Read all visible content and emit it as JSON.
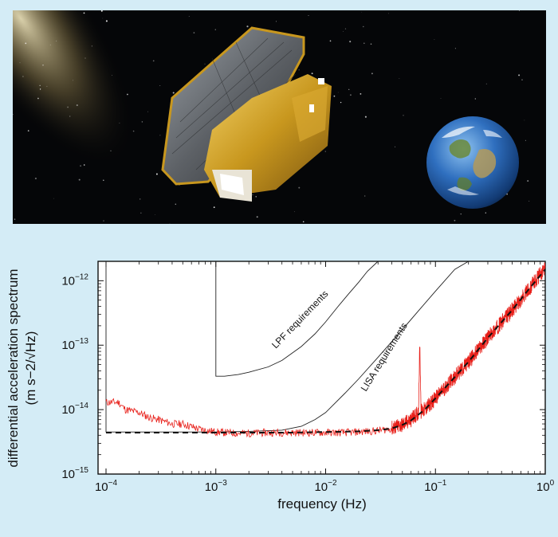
{
  "illustration": {
    "subject": "LISA Pathfinder spacecraft near Earth",
    "colors": {
      "space": "#050608",
      "gold": "#c8971e",
      "panel": "#5d6166",
      "earth_ocean": "#2f6fbf"
    }
  },
  "chart_data": {
    "type": "line",
    "xlabel": "frequency (Hz)",
    "ylabel": "differential acceleration spectrum",
    "ylabel_units": "(m s−2/√Hz)",
    "x_scale": "log",
    "y_scale": "log",
    "xlim": [
      0.0001,
      1
    ],
    "ylim": [
      1e-15,
      2e-12
    ],
    "x_ticks": [
      {
        "base": "10",
        "exp": "−4",
        "value": 0.0001
      },
      {
        "base": "10",
        "exp": "−3",
        "value": 0.001
      },
      {
        "base": "10",
        "exp": "−2",
        "value": 0.01
      },
      {
        "base": "10",
        "exp": "−1",
        "value": 0.1
      },
      {
        "base": "10",
        "exp": "0",
        "value": 1
      }
    ],
    "y_ticks": [
      {
        "base": "10",
        "exp": "−15",
        "value": 1e-15
      },
      {
        "base": "10",
        "exp": "−14",
        "value": 1e-14
      },
      {
        "base": "10",
        "exp": "−13",
        "value": 1e-13
      },
      {
        "base": "10",
        "exp": "−12",
        "value": 1e-12
      }
    ],
    "grid": false,
    "series": [
      {
        "name": "LPF requirements",
        "color": "#222222",
        "style": "solid-thin",
        "x": [
          0.001,
          0.001,
          0.0012,
          0.0016,
          0.002,
          0.003,
          0.004,
          0.006,
          0.008,
          0.01,
          0.013,
          0.016,
          0.02,
          0.024,
          0.03
        ],
        "y": [
          2e-12,
          3.3e-14,
          3.3e-14,
          3.5e-14,
          3.8e-14,
          4.6e-14,
          5.8e-14,
          9.5e-14,
          1.5e-13,
          2.3e-13,
          4e-13,
          6.1e-13,
          9.5e-13,
          1.4e-12,
          2e-12
        ]
      },
      {
        "name": "LISA requirements",
        "color": "#222222",
        "style": "solid-thin",
        "x": [
          0.0001,
          0.0001,
          0.0002,
          0.0005,
          0.001,
          0.002,
          0.004,
          0.006,
          0.008,
          0.01,
          0.015,
          0.02,
          0.03,
          0.05,
          0.07,
          0.1,
          0.15,
          0.2
        ],
        "y": [
          2e-12,
          4.5e-15,
          4.5e-15,
          4.5e-15,
          4.5e-15,
          4.6e-15,
          4.8e-15,
          5.5e-15,
          7e-15,
          9e-15,
          1.8e-14,
          3e-14,
          6.5e-14,
          1.75e-13,
          3.4e-13,
          6.9e-13,
          1.5e-12,
          2e-12
        ]
      },
      {
        "name": "",
        "color": "#111111",
        "style": "dashed",
        "x": [
          0.0001,
          0.001,
          0.005,
          0.01,
          0.02,
          0.03,
          0.04,
          0.05,
          0.06,
          0.08,
          0.1,
          0.15,
          0.2,
          0.3,
          0.5,
          0.7,
          1.0
        ],
        "y": [
          4.4e-15,
          4.4e-15,
          4.4e-15,
          4.5e-15,
          4.6e-15,
          4.8e-15,
          5.1e-15,
          5.8e-15,
          6.8e-15,
          1e-14,
          1.5e-14,
          3.2e-14,
          5.5e-14,
          1.3e-13,
          3.5e-13,
          7.2e-13,
          1.5e-12
        ]
      },
      {
        "name": "",
        "color": "#e8201a",
        "style": "noisy",
        "x": [
          0.0001,
          0.00013,
          0.00015,
          0.0002,
          0.00025,
          0.0003,
          0.0004,
          0.0005,
          0.0007,
          0.001,
          0.0015,
          0.002,
          0.003,
          0.004,
          0.005,
          0.007,
          0.01,
          0.015,
          0.02,
          0.03,
          0.04,
          0.05,
          0.06,
          0.07,
          0.072,
          0.074,
          0.08,
          0.1,
          0.15,
          0.2,
          0.3,
          0.5,
          0.7,
          1.0
        ],
        "y": [
          1.3e-14,
          1.3e-14,
          1e-14,
          9e-15,
          7.5e-15,
          7e-15,
          6e-15,
          6e-15,
          5e-15,
          4.5e-15,
          4.3e-15,
          4.3e-15,
          4.4e-15,
          4.4e-15,
          4.4e-15,
          4.4e-15,
          4.4e-15,
          4.4e-15,
          4.5e-15,
          4.7e-15,
          5.1e-15,
          5.8e-15,
          7e-15,
          9e-15,
          1.1e-13,
          9.5e-15,
          1e-14,
          1.5e-14,
          3.2e-14,
          5.5e-14,
          1.3e-13,
          3.5e-13,
          7.2e-13,
          1.6e-12
        ]
      }
    ],
    "annotations": [
      "LPF requirements",
      "LISA requirements"
    ]
  }
}
